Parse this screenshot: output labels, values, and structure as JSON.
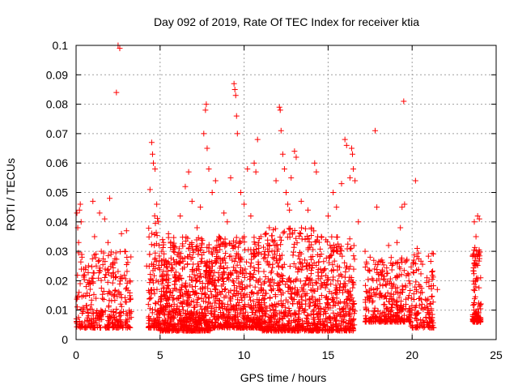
{
  "chart_data": {
    "type": "scatter",
    "title": "Day 092 of 2019, Rate Of TEC Index for receiver ktia",
    "xlabel": "GPS time / hours",
    "ylabel": "ROTI / TECUs",
    "xlim": [
      0,
      25
    ],
    "ylim": [
      0,
      0.1
    ],
    "xticks": [
      0,
      5,
      10,
      15,
      20,
      25
    ],
    "yticks": [
      0,
      0.01,
      0.02,
      0.03,
      0.04,
      0.05,
      0.06,
      0.07,
      0.08,
      0.09,
      0.1
    ],
    "xtick_labels": [
      "0",
      "5",
      "10",
      "15",
      "20",
      "25"
    ],
    "ytick_labels": [
      "0",
      "0.01",
      "0.02",
      "0.03",
      "0.04",
      "0.05",
      "0.06",
      "0.07",
      "0.08",
      "0.09",
      "0.1"
    ],
    "grid": true,
    "legend": "none",
    "marker": "+",
    "color": "#ff0000",
    "points": [
      [
        0.05,
        0.043
      ],
      [
        0.1,
        0.038
      ],
      [
        0.15,
        0.033
      ],
      [
        0.2,
        0.044
      ],
      [
        0.25,
        0.046
      ],
      [
        0.3,
        0.04
      ],
      [
        0.35,
        0.028
      ],
      [
        0.5,
        0.022
      ],
      [
        0.6,
        0.018
      ],
      [
        0.8,
        0.015
      ],
      [
        1.0,
        0.047
      ],
      [
        1.1,
        0.035
      ],
      [
        1.2,
        0.025
      ],
      [
        1.4,
        0.043
      ],
      [
        1.5,
        0.03
      ],
      [
        1.7,
        0.041
      ],
      [
        1.9,
        0.033
      ],
      [
        2.0,
        0.048
      ],
      [
        2.2,
        0.026
      ],
      [
        2.4,
        0.084
      ],
      [
        2.5,
        0.1
      ],
      [
        2.6,
        0.099
      ],
      [
        2.7,
        0.036
      ],
      [
        2.9,
        0.03
      ],
      [
        3.0,
        0.037
      ],
      [
        3.2,
        0.02
      ],
      [
        4.2,
        0.025
      ],
      [
        4.4,
        0.051
      ],
      [
        4.5,
        0.067
      ],
      [
        4.55,
        0.063
      ],
      [
        4.6,
        0.06
      ],
      [
        4.7,
        0.058
      ],
      [
        4.8,
        0.046
      ],
      [
        4.9,
        0.04
      ],
      [
        5.2,
        0.033
      ],
      [
        5.5,
        0.036
      ],
      [
        5.8,
        0.03
      ],
      [
        6.2,
        0.042
      ],
      [
        6.5,
        0.052
      ],
      [
        6.7,
        0.057
      ],
      [
        6.9,
        0.047
      ],
      [
        7.2,
        0.038
      ],
      [
        7.4,
        0.045
      ],
      [
        7.6,
        0.07
      ],
      [
        7.7,
        0.078
      ],
      [
        7.75,
        0.08
      ],
      [
        7.8,
        0.065
      ],
      [
        7.9,
        0.058
      ],
      [
        8.1,
        0.05
      ],
      [
        8.3,
        0.054
      ],
      [
        8.5,
        0.035
      ],
      [
        8.8,
        0.043
      ],
      [
        9.0,
        0.04
      ],
      [
        9.2,
        0.055
      ],
      [
        9.4,
        0.087
      ],
      [
        9.45,
        0.085
      ],
      [
        9.5,
        0.083
      ],
      [
        9.55,
        0.076
      ],
      [
        9.6,
        0.07
      ],
      [
        9.8,
        0.05
      ],
      [
        10.0,
        0.046
      ],
      [
        10.2,
        0.058
      ],
      [
        10.4,
        0.042
      ],
      [
        10.6,
        0.06
      ],
      [
        10.7,
        0.057
      ],
      [
        10.8,
        0.068
      ],
      [
        11.0,
        0.035
      ],
      [
        11.5,
        0.038
      ],
      [
        11.9,
        0.054
      ],
      [
        12.1,
        0.079
      ],
      [
        12.15,
        0.078
      ],
      [
        12.2,
        0.071
      ],
      [
        12.3,
        0.063
      ],
      [
        12.4,
        0.058
      ],
      [
        12.5,
        0.05
      ],
      [
        12.6,
        0.046
      ],
      [
        12.7,
        0.044
      ],
      [
        12.8,
        0.055
      ],
      [
        13.0,
        0.064
      ],
      [
        13.1,
        0.062
      ],
      [
        13.4,
        0.047
      ],
      [
        13.8,
        0.044
      ],
      [
        14.0,
        0.038
      ],
      [
        14.2,
        0.06
      ],
      [
        14.3,
        0.057
      ],
      [
        14.6,
        0.035
      ],
      [
        15.0,
        0.042
      ],
      [
        15.3,
        0.05
      ],
      [
        15.5,
        0.045
      ],
      [
        15.8,
        0.053
      ],
      [
        16.0,
        0.068
      ],
      [
        16.1,
        0.066
      ],
      [
        16.3,
        0.055
      ],
      [
        16.4,
        0.065
      ],
      [
        16.45,
        0.063
      ],
      [
        16.5,
        0.058
      ],
      [
        16.6,
        0.054
      ],
      [
        16.8,
        0.04
      ],
      [
        17.2,
        0.03
      ],
      [
        17.5,
        0.028
      ],
      [
        17.8,
        0.071
      ],
      [
        17.9,
        0.045
      ],
      [
        18.2,
        0.027
      ],
      [
        18.6,
        0.032
      ],
      [
        19.1,
        0.033
      ],
      [
        19.3,
        0.038
      ],
      [
        19.4,
        0.045
      ],
      [
        19.5,
        0.081
      ],
      [
        19.55,
        0.046
      ],
      [
        19.8,
        0.022
      ],
      [
        20.1,
        0.027
      ],
      [
        20.2,
        0.054
      ],
      [
        20.3,
        0.031
      ],
      [
        20.6,
        0.016
      ],
      [
        21.0,
        0.018
      ],
      [
        21.5,
        0.017
      ],
      [
        23.7,
        0.04
      ],
      [
        23.8,
        0.035
      ],
      [
        23.9,
        0.042
      ],
      [
        24.0,
        0.041
      ]
    ],
    "clusters": [
      {
        "x": [
          0.0,
          3.3
        ],
        "y": [
          0.004,
          0.03
        ],
        "n": 320
      },
      {
        "x": [
          4.3,
          5.0
        ],
        "y": [
          0.004,
          0.045
        ],
        "n": 110
      },
      {
        "x": [
          5.0,
          8.0
        ],
        "y": [
          0.003,
          0.035
        ],
        "n": 650
      },
      {
        "x": [
          8.0,
          11.0
        ],
        "y": [
          0.004,
          0.035
        ],
        "n": 520
      },
      {
        "x": [
          11.0,
          14.3
        ],
        "y": [
          0.003,
          0.038
        ],
        "n": 560
      },
      {
        "x": [
          14.3,
          16.6
        ],
        "y": [
          0.003,
          0.035
        ],
        "n": 360
      },
      {
        "x": [
          17.2,
          18.7
        ],
        "y": [
          0.006,
          0.027
        ],
        "n": 170
      },
      {
        "x": [
          18.7,
          19.9
        ],
        "y": [
          0.006,
          0.028
        ],
        "n": 150
      },
      {
        "x": [
          19.9,
          21.3
        ],
        "y": [
          0.004,
          0.03
        ],
        "n": 130
      },
      {
        "x": [
          23.6,
          24.1
        ],
        "y": [
          0.006,
          0.032
        ],
        "n": 100
      }
    ]
  }
}
